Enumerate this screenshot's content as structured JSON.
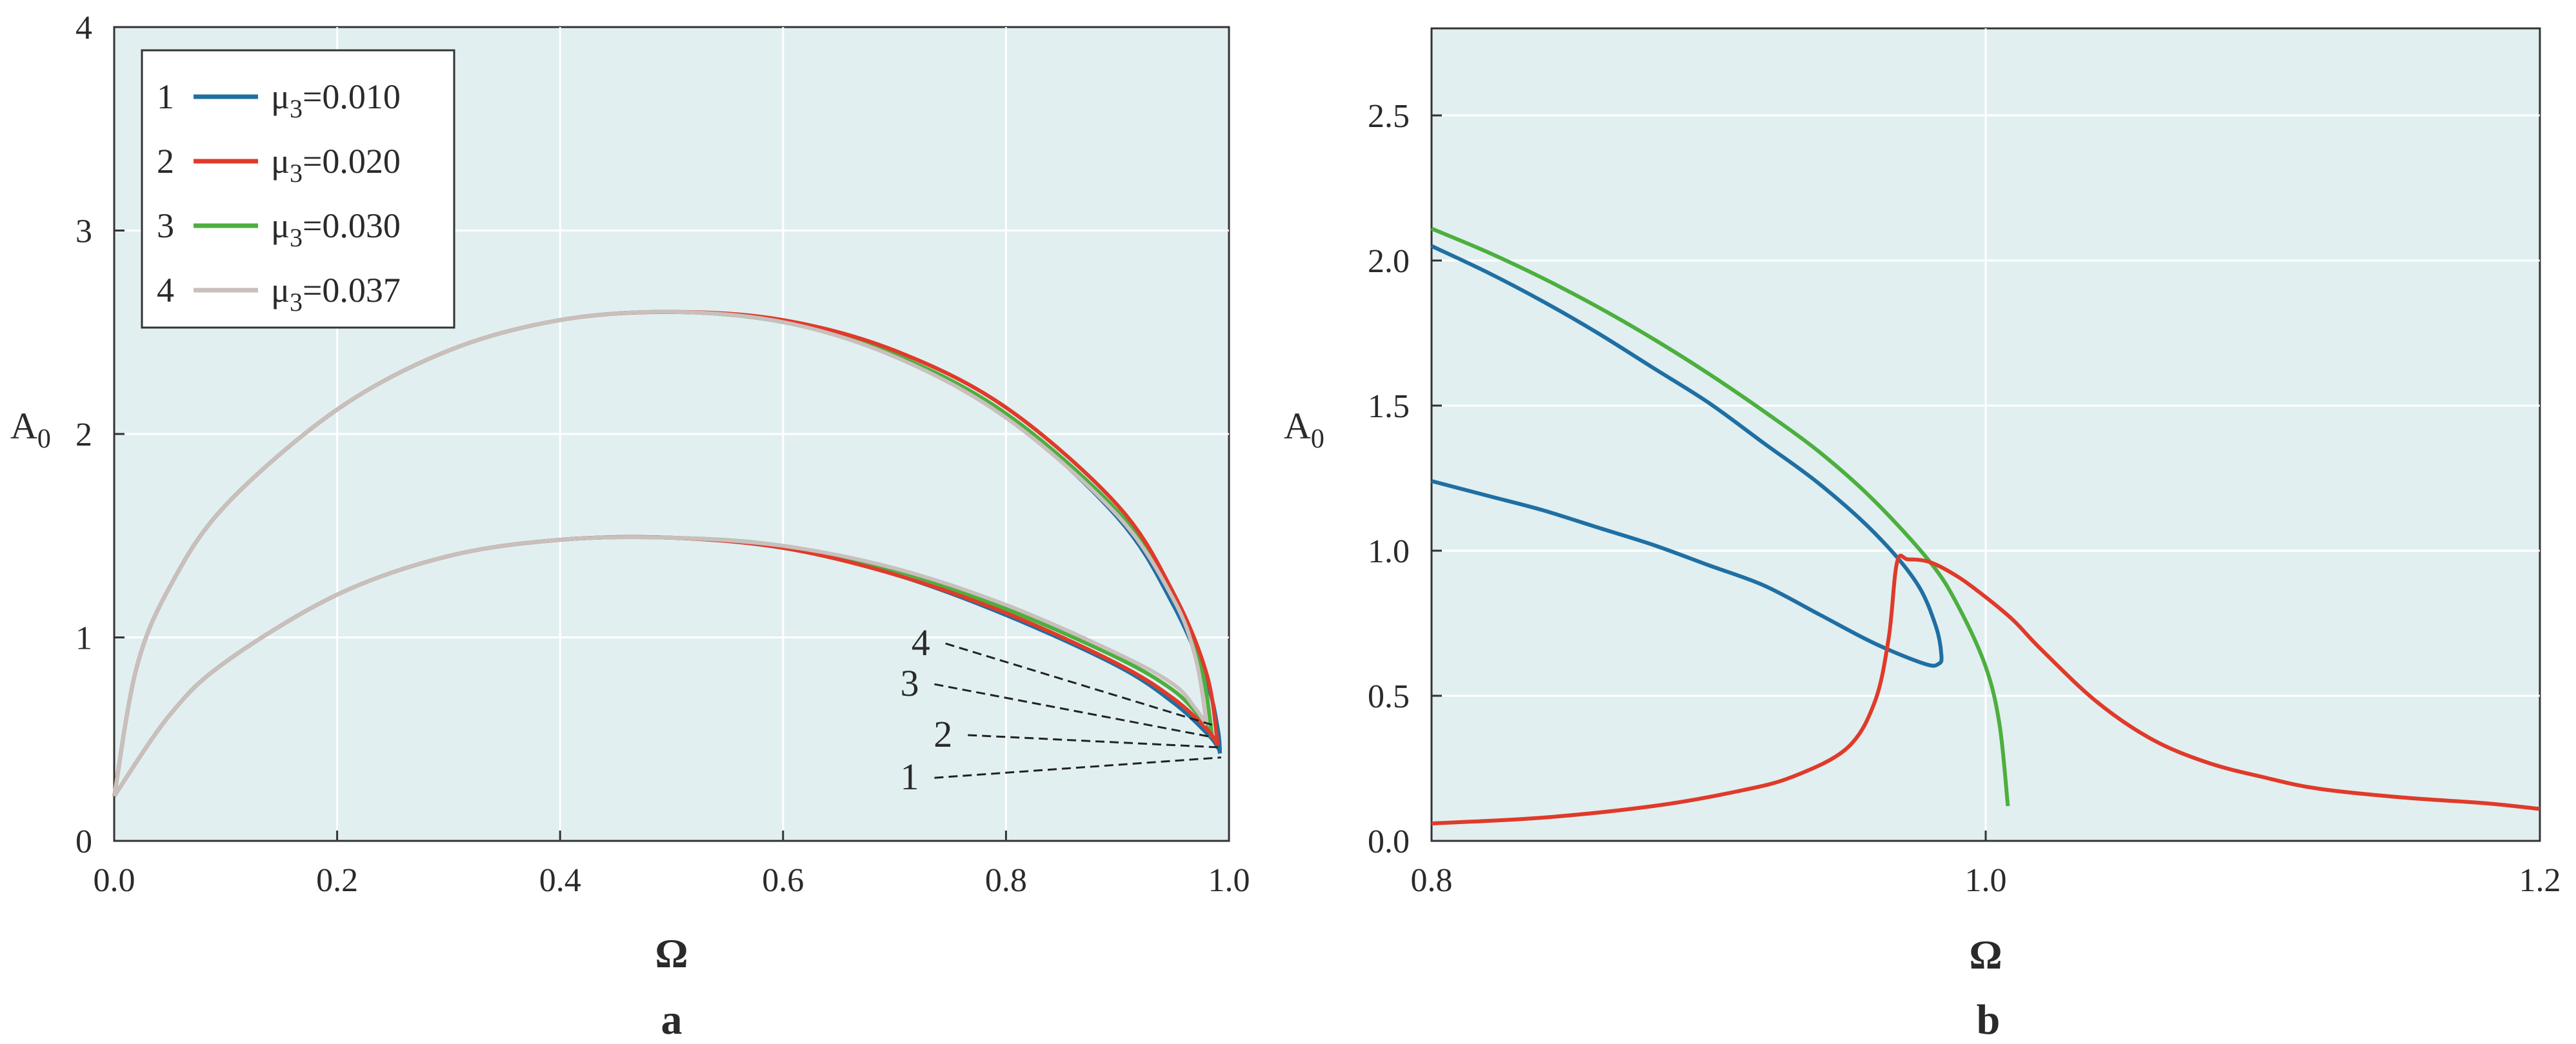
{
  "chart_data": [
    {
      "type": "line",
      "panel_label": "a",
      "xlabel": "Ω",
      "ylabel": "A",
      "ylabel_sub": "0",
      "xlim": [
        0.0,
        1.0
      ],
      "ylim": [
        0,
        4
      ],
      "xticks": [
        "0.0",
        "0.2",
        "0.4",
        "0.6",
        "0.8",
        "1.0"
      ],
      "yticks": [
        "0",
        "1",
        "2",
        "3",
        "4"
      ],
      "grid": true,
      "legend_position": "top-left",
      "series": [
        {
          "name": "μ3=0.010",
          "legend_num": "1",
          "legend_prefix": "μ",
          "legend_sub": "3",
          "legend_suffix": "=0.010",
          "color": "#1f6fa3",
          "x": [
            0.0,
            0.05,
            0.1,
            0.2,
            0.3,
            0.4,
            0.5,
            0.6,
            0.7,
            0.8,
            0.9,
            0.95,
            0.98,
            0.99,
            0.992
          ],
          "y": [
            0.22,
            0.62,
            0.88,
            1.21,
            1.4,
            1.48,
            1.49,
            1.44,
            1.31,
            1.11,
            0.86,
            0.68,
            0.53,
            0.46,
            0.43
          ]
        },
        {
          "name": "μ3=0.020",
          "legend_num": "2",
          "legend_prefix": "μ",
          "legend_sub": "3",
          "legend_suffix": "=0.020",
          "color": "#e03a2a",
          "x": [
            0.0,
            0.05,
            0.1,
            0.2,
            0.3,
            0.4,
            0.5,
            0.6,
            0.7,
            0.8,
            0.9,
            0.95,
            0.98,
            0.99
          ],
          "y": [
            0.22,
            0.62,
            0.88,
            1.21,
            1.4,
            1.48,
            1.49,
            1.44,
            1.31,
            1.12,
            0.87,
            0.7,
            0.55,
            0.47
          ]
        },
        {
          "name": "μ3=0.030",
          "legend_num": "3",
          "legend_prefix": "μ",
          "legend_sub": "3",
          "legend_suffix": "=0.030",
          "color": "#4caf3e",
          "x": [
            0.0,
            0.05,
            0.1,
            0.2,
            0.3,
            0.4,
            0.5,
            0.6,
            0.7,
            0.8,
            0.9,
            0.95,
            0.975,
            0.985
          ],
          "y": [
            0.22,
            0.62,
            0.88,
            1.21,
            1.4,
            1.48,
            1.49,
            1.45,
            1.33,
            1.14,
            0.9,
            0.74,
            0.6,
            0.51
          ]
        },
        {
          "name": "μ3=0.037",
          "legend_num": "4",
          "legend_prefix": "μ",
          "legend_sub": "3",
          "legend_suffix": "=0.037",
          "color": "#c9bfbd",
          "x": [
            0.0,
            0.05,
            0.1,
            0.2,
            0.3,
            0.4,
            0.5,
            0.6,
            0.7,
            0.8,
            0.9,
            0.95,
            0.97,
            0.98
          ],
          "y": [
            0.22,
            0.62,
            0.88,
            1.21,
            1.4,
            1.48,
            1.49,
            1.45,
            1.34,
            1.16,
            0.92,
            0.77,
            0.65,
            0.57
          ]
        }
      ],
      "upper_branches": [
        {
          "legend_num": "1",
          "color": "#1f6fa3",
          "x": [
            0.0,
            0.02,
            0.05,
            0.1,
            0.2,
            0.3,
            0.4,
            0.5,
            0.6,
            0.7,
            0.8,
            0.9,
            0.95,
            0.98,
            0.99,
            0.992
          ],
          "y": [
            0.22,
            0.85,
            1.25,
            1.65,
            2.12,
            2.41,
            2.56,
            2.6,
            2.55,
            2.39,
            2.09,
            1.59,
            1.16,
            0.78,
            0.55,
            0.43
          ]
        },
        {
          "legend_num": "2",
          "color": "#e03a2a",
          "x": [
            0.0,
            0.02,
            0.05,
            0.1,
            0.2,
            0.3,
            0.4,
            0.5,
            0.6,
            0.7,
            0.8,
            0.9,
            0.95,
            0.98,
            0.99
          ],
          "y": [
            0.22,
            0.85,
            1.25,
            1.65,
            2.12,
            2.41,
            2.56,
            2.6,
            2.56,
            2.41,
            2.13,
            1.65,
            1.22,
            0.82,
            0.47
          ]
        },
        {
          "legend_num": "3",
          "color": "#4caf3e",
          "x": [
            0.0,
            0.02,
            0.05,
            0.1,
            0.2,
            0.3,
            0.4,
            0.5,
            0.6,
            0.7,
            0.8,
            0.9,
            0.95,
            0.975,
            0.985
          ],
          "y": [
            0.22,
            0.85,
            1.25,
            1.65,
            2.12,
            2.41,
            2.56,
            2.6,
            2.55,
            2.39,
            2.1,
            1.62,
            1.2,
            0.85,
            0.51
          ]
        },
        {
          "legend_num": "4",
          "color": "#c9bfbd",
          "x": [
            0.0,
            0.02,
            0.05,
            0.1,
            0.2,
            0.3,
            0.4,
            0.5,
            0.6,
            0.7,
            0.8,
            0.9,
            0.95,
            0.97,
            0.98
          ],
          "y": [
            0.22,
            0.85,
            1.25,
            1.65,
            2.12,
            2.41,
            2.56,
            2.6,
            2.55,
            2.38,
            2.08,
            1.6,
            1.19,
            0.9,
            0.57
          ]
        }
      ],
      "annotations": [
        {
          "text": "4",
          "x": 0.74,
          "y": 0.97,
          "tx": 0.985,
          "ty": 0.57
        },
        {
          "text": "3",
          "x": 0.73,
          "y": 0.77,
          "tx": 0.985,
          "ty": 0.51
        },
        {
          "text": "2",
          "x": 0.76,
          "y": 0.52,
          "tx": 0.99,
          "ty": 0.46
        },
        {
          "text": "1",
          "x": 0.73,
          "y": 0.31,
          "tx": 0.993,
          "ty": 0.41
        }
      ]
    },
    {
      "type": "line",
      "panel_label": "b",
      "xlabel": "Ω",
      "ylabel": "A",
      "ylabel_sub": "0",
      "xlim": [
        0.8,
        1.2
      ],
      "ylim": [
        0,
        2.8
      ],
      "xticks": [
        "0.8",
        "1.0",
        "1.2"
      ],
      "xtick_values": [
        0.8,
        1.0,
        1.2
      ],
      "yticks": [
        "0.0",
        "0.5",
        "1.0",
        "1.5",
        "2.0",
        "2.5"
      ],
      "ytick_values": [
        0.0,
        0.5,
        1.0,
        1.5,
        2.0,
        2.5
      ],
      "grid": true,
      "series": [
        {
          "color": "#1f6fa3",
          "x": [
            0.8,
            0.82,
            0.84,
            0.86,
            0.88,
            0.9,
            0.92,
            0.94,
            0.96,
            0.975,
            0.982,
            0.984,
            0.983,
            0.978,
            0.96,
            0.94,
            0.92,
            0.9,
            0.88,
            0.86,
            0.84,
            0.82,
            0.8
          ],
          "y": [
            2.05,
            1.96,
            1.86,
            1.75,
            1.63,
            1.51,
            1.37,
            1.23,
            1.06,
            0.89,
            0.74,
            0.64,
            0.61,
            0.61,
            0.68,
            0.78,
            0.88,
            0.95,
            1.02,
            1.08,
            1.14,
            1.19,
            1.24
          ]
        },
        {
          "color": "#4caf3e",
          "x": [
            0.8,
            0.82,
            0.84,
            0.86,
            0.88,
            0.9,
            0.92,
            0.94,
            0.96,
            0.98,
            0.99,
            1.0,
            1.005,
            1.008
          ],
          "y": [
            2.11,
            2.03,
            1.94,
            1.84,
            1.73,
            1.61,
            1.48,
            1.34,
            1.17,
            0.96,
            0.81,
            0.6,
            0.4,
            0.12
          ]
        },
        {
          "color": "#e03a2a",
          "x": [
            0.8,
            0.84,
            0.88,
            0.91,
            0.93,
            0.95,
            0.96,
            0.965,
            0.968,
            0.972,
            0.98,
            0.99,
            1.0,
            1.01,
            1.02,
            1.04,
            1.06,
            1.08,
            1.1,
            1.12,
            1.15,
            1.18,
            1.2
          ],
          "y": [
            0.06,
            0.08,
            0.12,
            0.17,
            0.22,
            0.32,
            0.48,
            0.7,
            0.96,
            0.97,
            0.96,
            0.91,
            0.84,
            0.76,
            0.66,
            0.48,
            0.35,
            0.27,
            0.22,
            0.18,
            0.15,
            0.13,
            0.11
          ]
        }
      ]
    }
  ]
}
